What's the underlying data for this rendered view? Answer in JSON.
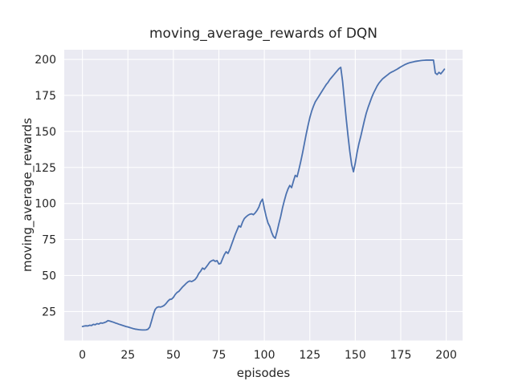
{
  "figure": {
    "title": "moving_average_rewards of DQN",
    "xlabel": "episodes",
    "ylabel": "moving_average_rewards"
  },
  "chart_data": {
    "type": "line",
    "title": "moving_average_rewards of DQN",
    "xlabel": "episodes",
    "ylabel": "moving_average_rewards",
    "x_ticks": [
      0,
      25,
      50,
      75,
      100,
      125,
      150,
      175,
      200
    ],
    "y_ticks": [
      25,
      50,
      75,
      100,
      125,
      150,
      175,
      200
    ],
    "xlim": [
      -10,
      209
    ],
    "ylim": [
      4.9,
      206.7
    ],
    "grid": true,
    "legend": false,
    "colors": {
      "line": "#4c72b0",
      "axes_background": "#eaeaf2",
      "grid": "#ffffff",
      "figure_background": "#ffffff",
      "text": "#262626"
    },
    "series": [
      {
        "name": "moving_average_rewards",
        "color": "#4c72b0",
        "x_start": 0,
        "x_step": 1,
        "values": [
          14.6,
          14.9,
          15.1,
          15.0,
          15.5,
          15.3,
          16.1,
          15.8,
          16.6,
          16.3,
          17.1,
          16.9,
          17.3,
          17.8,
          18.7,
          18.4,
          18.0,
          17.6,
          17.1,
          16.7,
          16.2,
          15.8,
          15.4,
          15.0,
          14.6,
          14.3,
          13.9,
          13.5,
          13.1,
          12.8,
          12.6,
          12.4,
          12.3,
          12.2,
          12.2,
          12.3,
          12.7,
          14.2,
          18.5,
          23.0,
          26.5,
          27.9,
          28.3,
          28.1,
          28.6,
          29.3,
          30.6,
          32.2,
          33.4,
          33.6,
          34.8,
          36.8,
          38.2,
          39.0,
          40.5,
          42.0,
          43.2,
          44.5,
          45.6,
          46.2,
          45.8,
          46.4,
          47.3,
          49.0,
          51.5,
          53.0,
          55.2,
          54.3,
          55.8,
          57.5,
          59.3,
          60.2,
          60.7,
          59.8,
          60.3,
          58.0,
          58.4,
          61.5,
          64.5,
          66.5,
          65.3,
          68.0,
          71.5,
          75.0,
          78.5,
          81.5,
          84.5,
          83.6,
          87.0,
          89.5,
          90.8,
          91.8,
          92.5,
          92.8,
          92.2,
          93.5,
          95.2,
          97.5,
          101.0,
          103.0,
          96.5,
          91.0,
          86.5,
          84.0,
          80.0,
          77.0,
          75.8,
          80.5,
          86.0,
          91.0,
          97.0,
          102.0,
          106.5,
          110.0,
          112.5,
          111.0,
          115.5,
          119.5,
          118.5,
          123.5,
          129.0,
          135.0,
          141.5,
          148.0,
          154.0,
          159.5,
          164.0,
          167.5,
          170.5,
          172.5,
          174.5,
          176.5,
          178.5,
          180.5,
          182.5,
          184.0,
          186.0,
          187.5,
          189.0,
          190.5,
          192.0,
          193.5,
          194.5,
          185.0,
          172.0,
          159.0,
          147.0,
          136.0,
          127.0,
          122.0,
          128.0,
          135.5,
          141.5,
          146.5,
          152.0,
          157.5,
          162.5,
          166.5,
          170.0,
          173.5,
          176.5,
          179.0,
          181.5,
          183.5,
          185.0,
          186.5,
          187.5,
          188.5,
          189.5,
          190.5,
          191.2,
          191.8,
          192.5,
          193.2,
          194.0,
          194.8,
          195.5,
          196.2,
          196.8,
          197.3,
          197.7,
          198.0,
          198.3,
          198.6,
          198.8,
          199.0,
          199.2,
          199.3,
          199.4,
          199.5,
          199.5,
          199.5,
          199.5,
          199.5,
          190.5,
          189.5,
          191.0,
          190.0,
          191.5,
          193.2
        ]
      }
    ]
  }
}
